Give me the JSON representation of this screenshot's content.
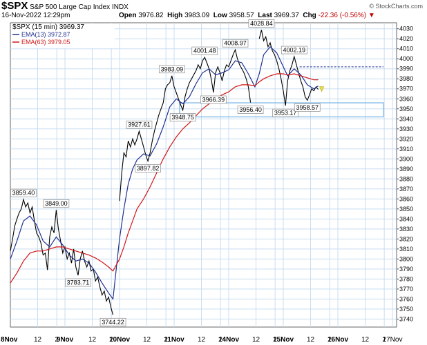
{
  "header": {
    "symbol": "$SPX",
    "name": "S&P 500 Large Cap Index",
    "exchange": "INDX",
    "datetime": "16-Nov-2022 12:29pm",
    "open_label": "Open",
    "open": "3976.82",
    "high_label": "High",
    "high": "3983.09",
    "low_label": "Low",
    "low": "3958.57",
    "last_label": "Last",
    "last": "3969.37",
    "chg_label": "Chg",
    "chg": "-22.36 (-0.56%)",
    "watermark": "© StockCharts.com"
  },
  "legend": [
    {
      "text": "$SPX (15 min) 3969.37",
      "color": "#000000"
    },
    {
      "text": "EMA(13) 3972.87",
      "color": "#1f2f8f"
    },
    {
      "text": "EMA(63) 3979.05",
      "color": "#d21414"
    }
  ],
  "colors": {
    "price": "#000000",
    "ema13": "#1f2f8f",
    "ema63": "#d21414",
    "grid": "#c8ddf0",
    "box": "#8fc0ea",
    "dashed": "#1f2f8f"
  },
  "chart_data": {
    "type": "line",
    "title": "$SPX S&P 500 Large Cap Index INDX",
    "ylim": [
      3732,
      4036
    ],
    "xlim": [
      0,
      8.1
    ],
    "grid": true,
    "legend_position": "top-left",
    "y_ticks": [
      3740,
      3750,
      3760,
      3770,
      3780,
      3790,
      3800,
      3810,
      3820,
      3830,
      3840,
      3850,
      3860,
      3870,
      3880,
      3890,
      3900,
      3910,
      3920,
      3930,
      3940,
      3950,
      3960,
      3970,
      3980,
      3990,
      4000,
      4010,
      4020,
      4030
    ],
    "x_ticks": [
      {
        "x": 0,
        "label": "8Nov",
        "bold": true
      },
      {
        "x": 0.5,
        "label": "12",
        "bold": false
      },
      {
        "x": 0.85,
        "label": "2",
        "bold": false
      },
      {
        "x": 1,
        "label": "9Nov",
        "bold": true
      },
      {
        "x": 1.5,
        "label": "12",
        "bold": false
      },
      {
        "x": 1.85,
        "label": "2",
        "bold": false
      },
      {
        "x": 2,
        "label": "10Nov",
        "bold": true
      },
      {
        "x": 2.5,
        "label": "12",
        "bold": false
      },
      {
        "x": 2.85,
        "label": "2",
        "bold": false
      },
      {
        "x": 3,
        "label": "11Nov",
        "bold": true
      },
      {
        "x": 3.5,
        "label": "12",
        "bold": false
      },
      {
        "x": 3.85,
        "label": "2",
        "bold": false
      },
      {
        "x": 4,
        "label": "14Nov",
        "bold": true
      },
      {
        "x": 4.5,
        "label": "12",
        "bold": false
      },
      {
        "x": 4.85,
        "label": "2",
        "bold": false
      },
      {
        "x": 5,
        "label": "15Nov",
        "bold": true
      },
      {
        "x": 5.5,
        "label": "12",
        "bold": false
      },
      {
        "x": 5.85,
        "label": "2",
        "bold": false
      },
      {
        "x": 6,
        "label": "16Nov",
        "bold": true
      },
      {
        "x": 6.5,
        "label": "12",
        "bold": false
      },
      {
        "x": 6.85,
        "label": "2",
        "bold": false
      },
      {
        "x": 7,
        "label": "17Nov",
        "bold": false
      }
    ],
    "series": [
      {
        "name": "$SPX (15 min)",
        "values": [
          [
            0.0,
            3808
          ],
          [
            0.04,
            3820
          ],
          [
            0.08,
            3833
          ],
          [
            0.12,
            3840
          ],
          [
            0.16,
            3846
          ],
          [
            0.2,
            3850
          ],
          [
            0.24,
            3859.4
          ],
          [
            0.28,
            3852
          ],
          [
            0.32,
            3856
          ],
          [
            0.36,
            3846
          ],
          [
            0.4,
            3852
          ],
          [
            0.44,
            3838
          ],
          [
            0.48,
            3826
          ],
          [
            0.52,
            3822
          ],
          [
            0.56,
            3816
          ],
          [
            0.6,
            3804
          ],
          [
            0.64,
            3806
          ],
          [
            0.68,
            3789
          ],
          [
            0.72,
            3822
          ],
          [
            0.76,
            3832
          ],
          [
            0.8,
            3826
          ],
          [
            0.84,
            3849
          ],
          [
            0.88,
            3830
          ],
          [
            0.92,
            3818
          ],
          [
            0.96,
            3806
          ],
          [
            1.0,
            3812
          ],
          [
            1.04,
            3800
          ],
          [
            1.08,
            3806
          ],
          [
            1.12,
            3796
          ],
          [
            1.16,
            3810
          ],
          [
            1.2,
            3792
          ],
          [
            1.24,
            3783.71
          ],
          [
            1.28,
            3800
          ],
          [
            1.32,
            3808
          ],
          [
            1.36,
            3798
          ],
          [
            1.4,
            3792
          ],
          [
            1.44,
            3798
          ],
          [
            1.48,
            3788
          ],
          [
            1.52,
            3790
          ],
          [
            1.56,
            3778
          ],
          [
            1.6,
            3782
          ],
          [
            1.64,
            3772
          ],
          [
            1.68,
            3764
          ],
          [
            1.72,
            3768
          ],
          [
            1.76,
            3758
          ],
          [
            1.8,
            3762
          ],
          [
            1.84,
            3752
          ],
          [
            1.88,
            3744.22
          ],
          [
            2.0,
            3858
          ],
          [
            2.04,
            3886
          ],
          [
            2.08,
            3906
          ],
          [
            2.12,
            3902
          ],
          [
            2.16,
            3918
          ],
          [
            2.2,
            3912
          ],
          [
            2.24,
            3920
          ],
          [
            2.28,
            3914
          ],
          [
            2.32,
            3920
          ],
          [
            2.36,
            3927.61
          ],
          [
            2.4,
            3920
          ],
          [
            2.44,
            3912
          ],
          [
            2.48,
            3904
          ],
          [
            2.52,
            3897.82
          ],
          [
            2.56,
            3906
          ],
          [
            2.6,
            3918
          ],
          [
            2.64,
            3928
          ],
          [
            2.68,
            3936
          ],
          [
            2.72,
            3944
          ],
          [
            2.76,
            3950
          ],
          [
            2.8,
            3956
          ],
          [
            2.84,
            3970
          ],
          [
            2.88,
            3974
          ],
          [
            2.92,
            3976
          ],
          [
            2.96,
            3983.09
          ],
          [
            3.0,
            3972
          ],
          [
            3.04,
            3966
          ],
          [
            3.08,
            3960
          ],
          [
            3.12,
            3954
          ],
          [
            3.16,
            3948.75
          ],
          [
            3.2,
            3962
          ],
          [
            3.24,
            3970
          ],
          [
            3.28,
            3976
          ],
          [
            3.32,
            3980
          ],
          [
            3.36,
            3984
          ],
          [
            3.4,
            3988
          ],
          [
            3.44,
            3994
          ],
          [
            3.48,
            3990
          ],
          [
            3.52,
            3998
          ],
          [
            3.56,
            4001.48
          ],
          [
            3.6,
            3996
          ],
          [
            3.64,
            3990
          ],
          [
            3.68,
            3980
          ],
          [
            3.72,
            3966.39
          ],
          [
            3.76,
            3986
          ],
          [
            3.8,
            3992
          ],
          [
            3.84,
            3986
          ],
          [
            3.88,
            3978
          ],
          [
            3.92,
            3988
          ],
          [
            3.96,
            3994
          ],
          [
            4.0,
            3992
          ],
          [
            4.04,
            3998
          ],
          [
            4.08,
            4004
          ],
          [
            4.12,
            4008.97
          ],
          [
            4.16,
            4000
          ],
          [
            4.2,
            3994
          ],
          [
            4.24,
            3990
          ],
          [
            4.28,
            3986
          ],
          [
            4.32,
            3980
          ],
          [
            4.36,
            3972
          ],
          [
            4.4,
            3956.4
          ],
          [
            4.56,
            4020
          ],
          [
            4.6,
            4028.84
          ],
          [
            4.64,
            4018
          ],
          [
            4.68,
            4022
          ],
          [
            4.72,
            4012
          ],
          [
            4.76,
            4016
          ],
          [
            4.8,
            4008
          ],
          [
            4.84,
            4004
          ],
          [
            4.88,
            3998
          ],
          [
            4.92,
            3990
          ],
          [
            4.96,
            3980
          ],
          [
            5.0,
            3968
          ],
          [
            5.04,
            3953.17
          ],
          [
            5.08,
            3978
          ],
          [
            5.12,
            3988
          ],
          [
            5.16,
            3994
          ],
          [
            5.2,
            4002.19
          ],
          [
            5.24,
            3994
          ],
          [
            5.28,
            3986
          ],
          [
            5.32,
            3978
          ],
          [
            5.36,
            3972
          ],
          [
            5.4,
            3962
          ],
          [
            5.44,
            3958.57
          ],
          [
            5.48,
            3964
          ],
          [
            5.52,
            3970
          ],
          [
            5.56,
            3968
          ],
          [
            5.6,
            3972
          ],
          [
            5.64,
            3969.37
          ]
        ]
      },
      {
        "name": "EMA(13)",
        "values": [
          [
            0.0,
            3800
          ],
          [
            0.12,
            3818
          ],
          [
            0.24,
            3838
          ],
          [
            0.36,
            3843
          ],
          [
            0.48,
            3834
          ],
          [
            0.6,
            3818
          ],
          [
            0.72,
            3812
          ],
          [
            0.84,
            3822
          ],
          [
            0.96,
            3814
          ],
          [
            1.08,
            3804
          ],
          [
            1.2,
            3798
          ],
          [
            1.32,
            3800
          ],
          [
            1.44,
            3796
          ],
          [
            1.56,
            3787
          ],
          [
            1.68,
            3776
          ],
          [
            1.8,
            3766
          ],
          [
            1.88,
            3760
          ],
          [
            2.0,
            3820
          ],
          [
            2.08,
            3850
          ],
          [
            2.16,
            3875
          ],
          [
            2.24,
            3890
          ],
          [
            2.32,
            3899
          ],
          [
            2.44,
            3905
          ],
          [
            2.56,
            3903
          ],
          [
            2.68,
            3915
          ],
          [
            2.8,
            3932
          ],
          [
            2.92,
            3952
          ],
          [
            3.04,
            3960
          ],
          [
            3.16,
            3955
          ],
          [
            3.28,
            3962
          ],
          [
            3.4,
            3975
          ],
          [
            3.52,
            3986
          ],
          [
            3.64,
            3990
          ],
          [
            3.76,
            3984
          ],
          [
            3.88,
            3986
          ],
          [
            4.0,
            3989
          ],
          [
            4.12,
            3998
          ],
          [
            4.24,
            3996
          ],
          [
            4.36,
            3985
          ],
          [
            4.48,
            3972
          ],
          [
            4.56,
            3985
          ],
          [
            4.64,
            4004
          ],
          [
            4.76,
            4012
          ],
          [
            4.88,
            4006
          ],
          [
            5.0,
            3992
          ],
          [
            5.08,
            3983
          ],
          [
            5.2,
            3990
          ],
          [
            5.32,
            3984
          ],
          [
            5.44,
            3974
          ],
          [
            5.56,
            3970
          ],
          [
            5.64,
            3972.87
          ]
        ]
      },
      {
        "name": "EMA(63)",
        "values": [
          [
            0.0,
            3776
          ],
          [
            0.12,
            3786
          ],
          [
            0.24,
            3798
          ],
          [
            0.36,
            3806
          ],
          [
            0.48,
            3808
          ],
          [
            0.6,
            3808
          ],
          [
            0.72,
            3810
          ],
          [
            0.84,
            3812
          ],
          [
            0.96,
            3812
          ],
          [
            1.08,
            3810
          ],
          [
            1.2,
            3808
          ],
          [
            1.32,
            3806
          ],
          [
            1.44,
            3804
          ],
          [
            1.56,
            3801
          ],
          [
            1.68,
            3797
          ],
          [
            1.8,
            3792
          ],
          [
            1.88,
            3788
          ],
          [
            2.0,
            3800
          ],
          [
            2.08,
            3812
          ],
          [
            2.16,
            3826
          ],
          [
            2.24,
            3838
          ],
          [
            2.32,
            3850
          ],
          [
            2.44,
            3860
          ],
          [
            2.56,
            3872
          ],
          [
            2.68,
            3886
          ],
          [
            2.8,
            3900
          ],
          [
            2.92,
            3912
          ],
          [
            3.04,
            3922
          ],
          [
            3.16,
            3930
          ],
          [
            3.28,
            3936
          ],
          [
            3.4,
            3943
          ],
          [
            3.52,
            3950
          ],
          [
            3.64,
            3955
          ],
          [
            3.76,
            3960
          ],
          [
            3.88,
            3964
          ],
          [
            4.0,
            3967
          ],
          [
            4.12,
            3972
          ],
          [
            4.24,
            3974
          ],
          [
            4.36,
            3974
          ],
          [
            4.48,
            3973
          ],
          [
            4.56,
            3977
          ],
          [
            4.64,
            3980
          ],
          [
            4.76,
            3983
          ],
          [
            4.88,
            3985
          ],
          [
            5.0,
            3985
          ],
          [
            5.08,
            3984
          ],
          [
            5.2,
            3985
          ],
          [
            5.32,
            3983
          ],
          [
            5.44,
            3981
          ],
          [
            5.56,
            3979
          ],
          [
            5.64,
            3979.05
          ]
        ]
      }
    ],
    "annotations": [
      {
        "x": 0.24,
        "y": 3859.4,
        "text": "3859.40",
        "pos": "above"
      },
      {
        "x": 0.84,
        "y": 3849,
        "text": "3849.00",
        "pos": "above"
      },
      {
        "x": 1.24,
        "y": 3783.71,
        "text": "3783.71",
        "pos": "below"
      },
      {
        "x": 1.88,
        "y": 3744.22,
        "text": "3744.22",
        "pos": "below"
      },
      {
        "x": 2.36,
        "y": 3927.61,
        "text": "3927.61",
        "pos": "above"
      },
      {
        "x": 2.52,
        "y": 3897.82,
        "text": "3897.82",
        "pos": "below"
      },
      {
        "x": 2.96,
        "y": 3983.09,
        "text": "3983.09",
        "pos": "above"
      },
      {
        "x": 3.16,
        "y": 3948.75,
        "text": "3948.75",
        "pos": "below"
      },
      {
        "x": 3.56,
        "y": 4001.48,
        "text": "4001.48",
        "pos": "above"
      },
      {
        "x": 3.72,
        "y": 3966.39,
        "text": "3966.39",
        "pos": "below"
      },
      {
        "x": 4.12,
        "y": 4008.97,
        "text": "4008.97",
        "pos": "above"
      },
      {
        "x": 4.4,
        "y": 3956.4,
        "text": "3956.40",
        "pos": "below"
      },
      {
        "x": 4.6,
        "y": 4028.84,
        "text": "4028.84",
        "pos": "above"
      },
      {
        "x": 5.04,
        "y": 3953.17,
        "text": "3953.17",
        "pos": "below"
      },
      {
        "x": 5.2,
        "y": 4002.19,
        "text": "4002.19",
        "pos": "above"
      },
      {
        "x": 5.44,
        "y": 3958.57,
        "text": "3958.57",
        "pos": "below"
      }
    ],
    "support_box": {
      "x_start": 3.1,
      "x_end": 7.0,
      "y_low": 3942,
      "y_high": 3956
    },
    "resistance_line": {
      "x_start": 5.3,
      "x_end": 7.0,
      "y": 3992
    }
  }
}
